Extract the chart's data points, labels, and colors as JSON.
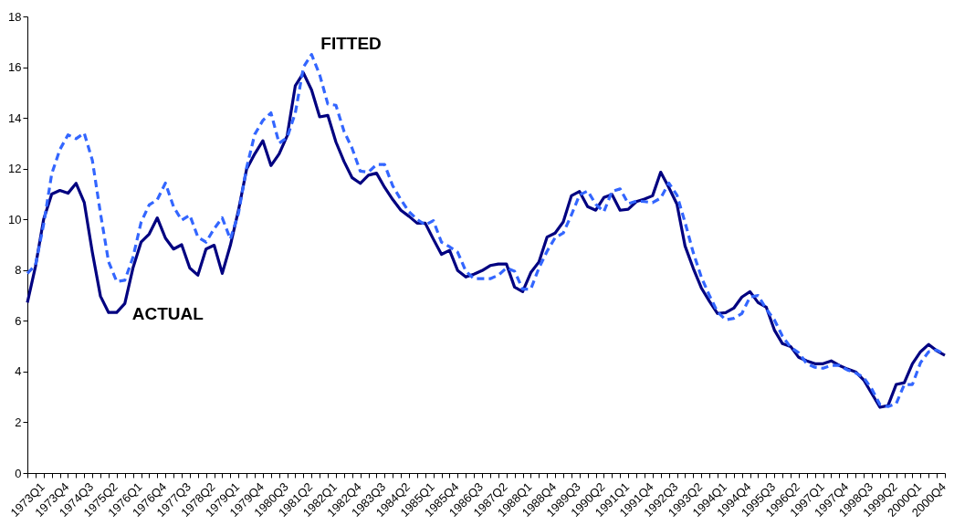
{
  "chart_data": {
    "type": "line",
    "categories": [
      "1973Q1",
      null,
      null,
      "1973Q4",
      null,
      null,
      "1974Q3",
      null,
      null,
      "1975Q2",
      null,
      null,
      "1976Q1",
      null,
      null,
      "1976Q4",
      null,
      null,
      "1977Q3",
      null,
      null,
      "1978Q2",
      null,
      null,
      "1979Q1",
      null,
      null,
      "1979Q4",
      null,
      null,
      "1980Q3",
      null,
      null,
      "1981Q2",
      null,
      null,
      "1982Q1",
      null,
      null,
      "1982Q4",
      null,
      null,
      "1983Q3",
      null,
      null,
      "1984Q2",
      null,
      null,
      "1985Q1",
      null,
      null,
      "1985Q4",
      null,
      null,
      "1986Q3",
      null,
      null,
      "1987Q2",
      null,
      null,
      "1988Q1",
      null,
      null,
      "1988Q4",
      null,
      null,
      "1989Q3",
      null,
      null,
      "1990Q2",
      null,
      null,
      "1991Q1",
      null,
      null,
      "1991Q4",
      null,
      null,
      "1992Q3",
      null,
      null,
      "1993Q2",
      null,
      null,
      "1994Q1",
      null,
      null,
      "1994Q4",
      null,
      null,
      "1995Q3",
      null,
      null,
      "1996Q2",
      null,
      null,
      "1997Q1",
      null,
      null,
      "1997Q4",
      null,
      null,
      "1998Q3",
      null,
      null,
      "1999Q2",
      null,
      null,
      "2000Q1",
      null,
      null,
      "2000Q4",
      null,
      null
    ],
    "series": [
      {
        "name": "ACTUAL",
        "color": "#000080",
        "line_style": "solid",
        "values": [
          6.72,
          8.15,
          10.0,
          11.0,
          11.14,
          11.03,
          11.42,
          10.67,
          8.7,
          6.97,
          6.33,
          6.33,
          6.68,
          8.08,
          9.1,
          9.42,
          10.06,
          9.26,
          8.83,
          9.0,
          8.08,
          7.8,
          8.83,
          8.98,
          7.87,
          8.98,
          10.36,
          11.98,
          12.58,
          13.1,
          12.12,
          12.58,
          13.3,
          15.27,
          15.77,
          15.1,
          14.04,
          14.1,
          13.05,
          12.28,
          11.64,
          11.42,
          11.74,
          11.82,
          11.26,
          10.78,
          10.36,
          10.12,
          9.85,
          9.85,
          9.22,
          8.62,
          8.78,
          7.98,
          7.73,
          7.84,
          7.98,
          8.18,
          8.24,
          8.24,
          7.33,
          7.15,
          7.9,
          8.32,
          9.3,
          9.46,
          9.9,
          10.93,
          11.1,
          10.5,
          10.36,
          10.86,
          10.98,
          10.36,
          10.4,
          10.7,
          10.8,
          10.93,
          11.86,
          11.26,
          10.6,
          8.95,
          8.08,
          7.3,
          6.77,
          6.29,
          6.32,
          6.5,
          6.94,
          7.15,
          6.72,
          6.54,
          5.64,
          5.1,
          4.99,
          4.56,
          4.42,
          4.31,
          4.31,
          4.42,
          4.24,
          4.1,
          3.99,
          3.67,
          3.13,
          2.59,
          2.66,
          3.49,
          3.56,
          4.31,
          4.78,
          5.07,
          4.82,
          4.64
        ]
      },
      {
        "name": "FITTED",
        "color": "#3366ff",
        "line_style": "dashed",
        "values": [
          7.87,
          8.2,
          9.8,
          11.8,
          12.75,
          13.33,
          13.18,
          13.4,
          12.33,
          10.24,
          8.33,
          7.55,
          7.6,
          8.5,
          9.88,
          10.57,
          10.78,
          11.43,
          10.5,
          9.97,
          10.17,
          9.3,
          9.1,
          9.63,
          10.06,
          9.22,
          10.24,
          12.04,
          13.35,
          13.9,
          14.2,
          13.0,
          13.23,
          14.2,
          16.0,
          16.5,
          15.7,
          14.55,
          14.5,
          13.47,
          12.8,
          11.9,
          11.86,
          12.16,
          12.16,
          11.32,
          10.78,
          10.3,
          10.0,
          9.78,
          9.95,
          9.1,
          8.92,
          8.7,
          7.96,
          7.66,
          7.66,
          7.66,
          7.8,
          8.08,
          7.96,
          7.25,
          7.25,
          8.08,
          8.74,
          9.28,
          9.46,
          10.17,
          10.96,
          11.12,
          10.6,
          10.3,
          11.1,
          11.2,
          10.62,
          10.72,
          10.7,
          10.66,
          10.84,
          11.43,
          10.96,
          9.88,
          8.7,
          7.73,
          7.0,
          6.35,
          6.04,
          6.1,
          6.29,
          6.94,
          7.0,
          6.47,
          6.04,
          5.39,
          4.96,
          4.74,
          4.31,
          4.17,
          4.13,
          4.24,
          4.24,
          4.06,
          3.95,
          3.77,
          3.31,
          2.7,
          2.62,
          2.73,
          3.49,
          3.49,
          4.35,
          4.78,
          4.85,
          4.67
        ]
      }
    ],
    "ylim": [
      0,
      18
    ],
    "yticks": [
      0,
      2,
      4,
      6,
      8,
      10,
      12,
      14,
      16,
      18
    ],
    "grid": false,
    "legend": false,
    "marker": "none"
  }
}
